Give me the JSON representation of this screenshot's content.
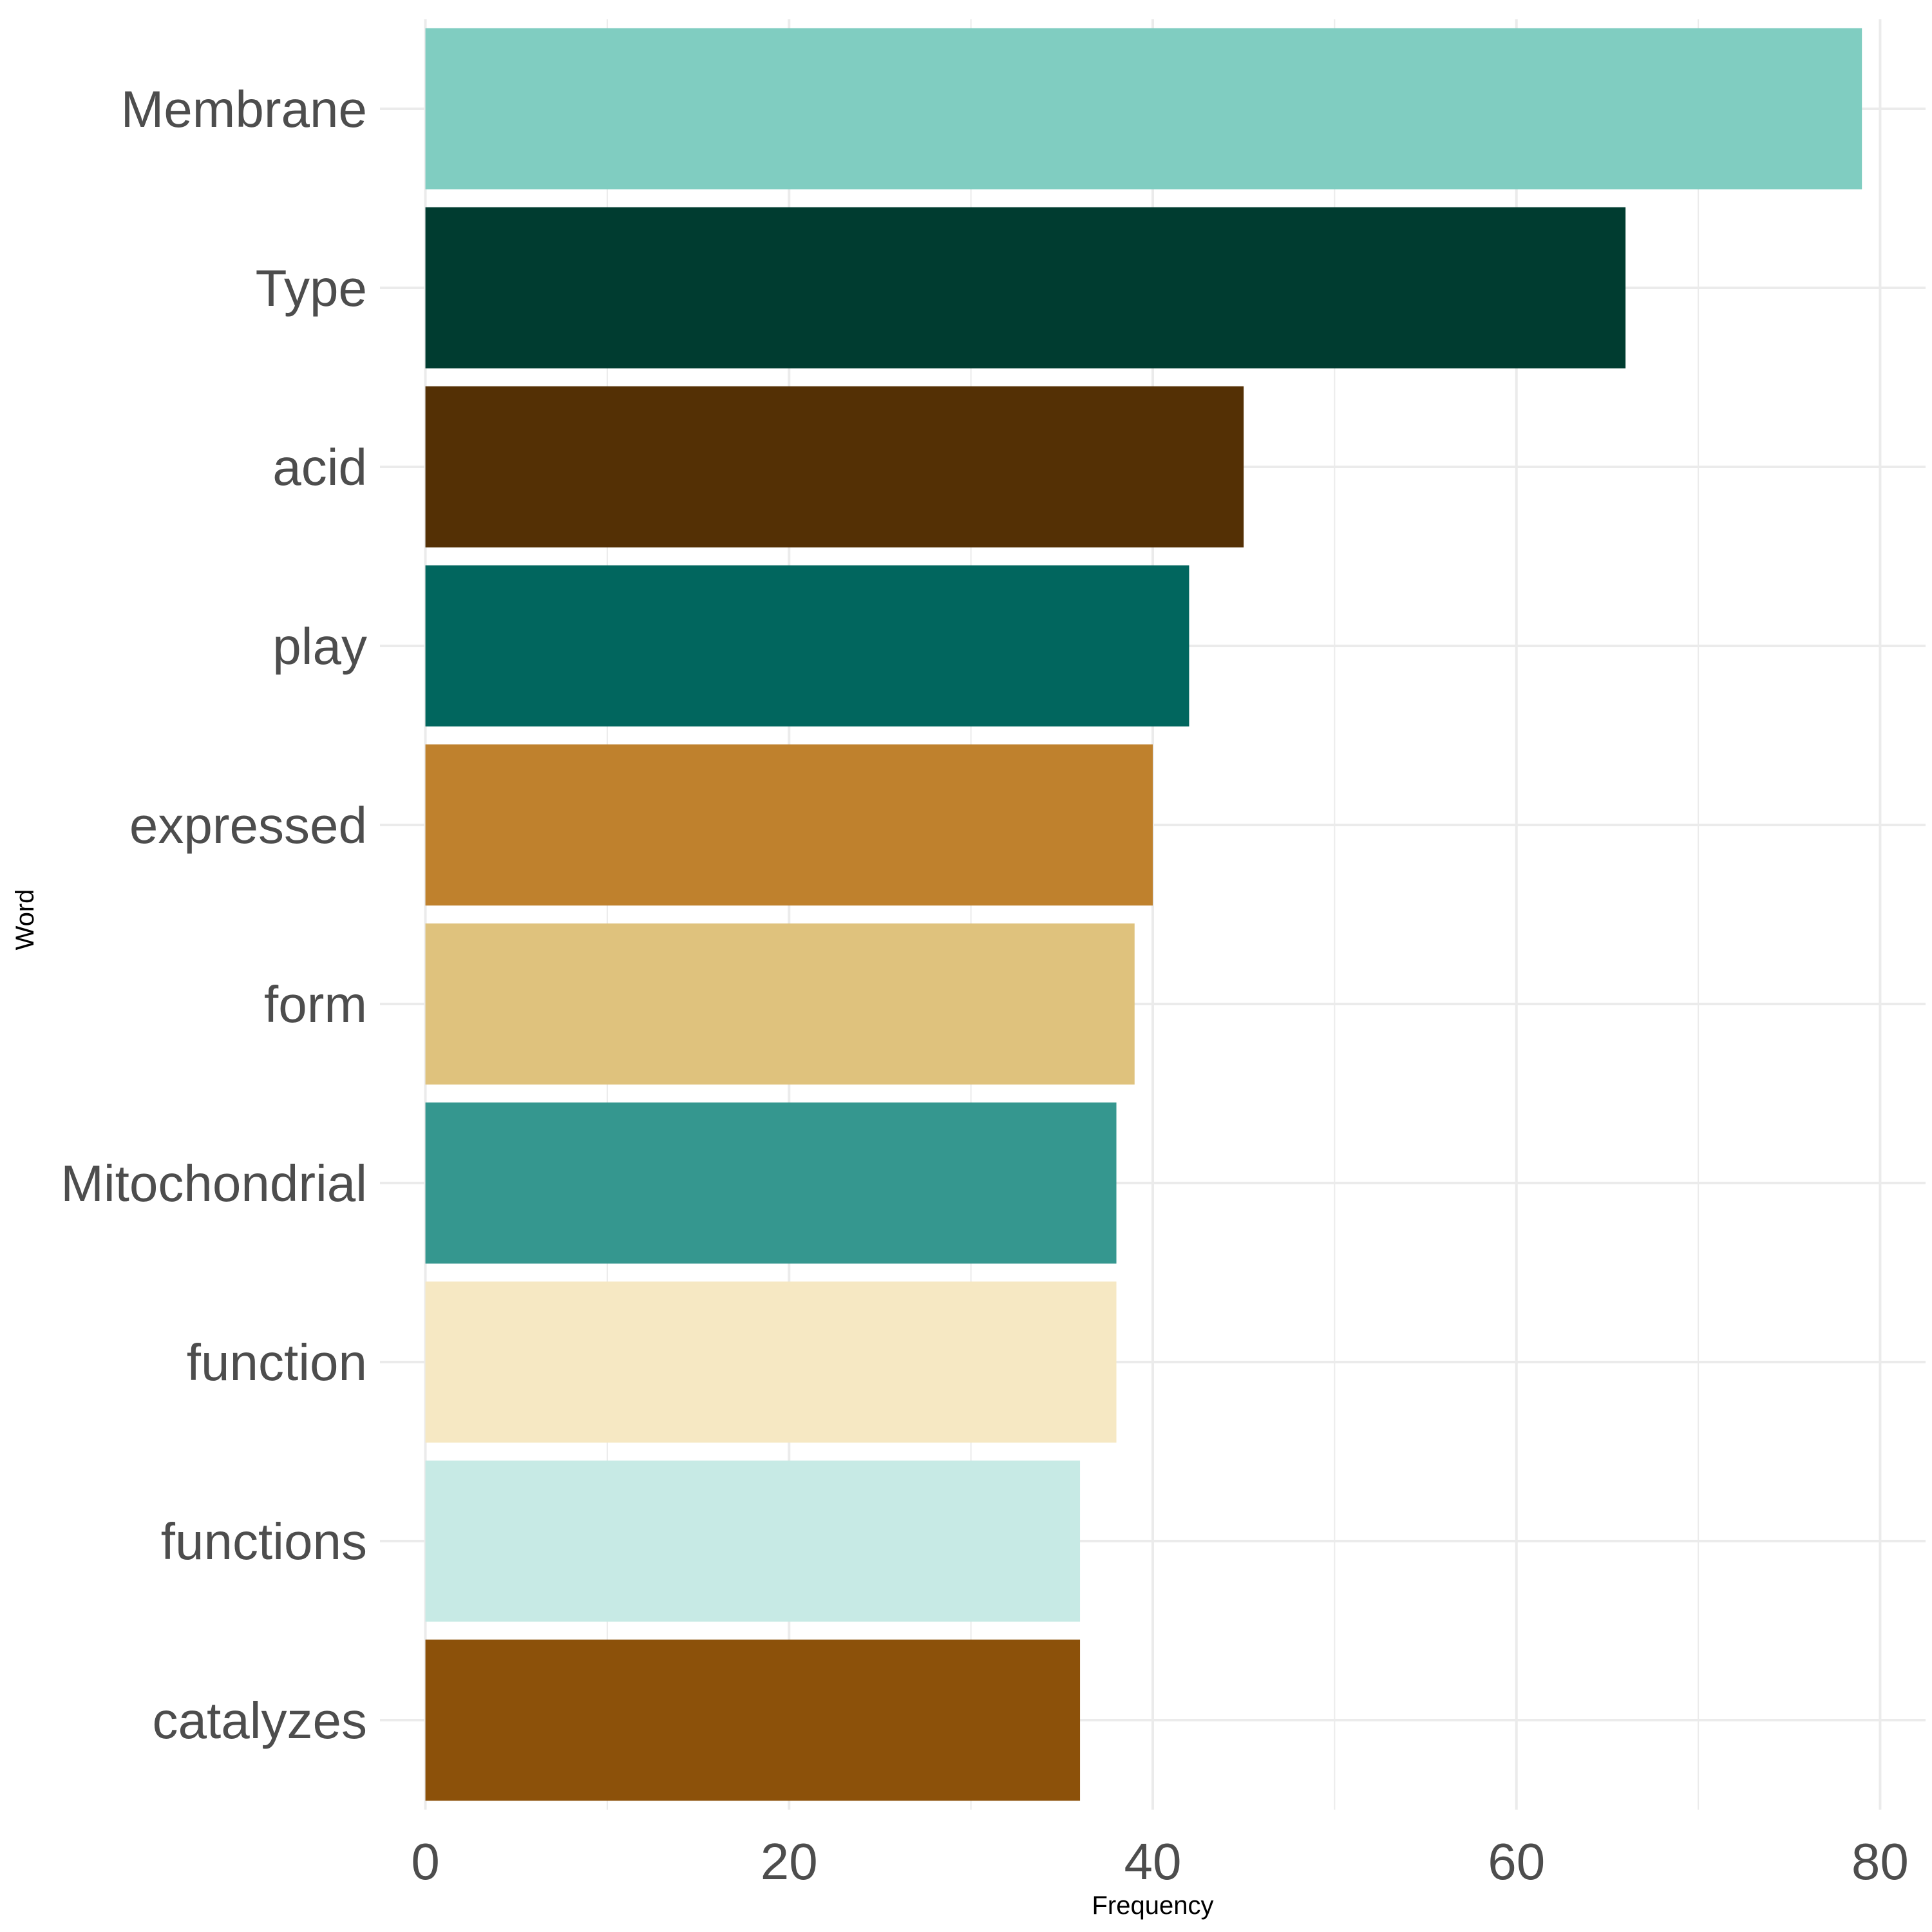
{
  "chart_data": {
    "type": "bar",
    "orientation": "horizontal",
    "xlabel": "Frequency",
    "ylabel": "Word",
    "xlim": [
      -2.5,
      82.5
    ],
    "x_ticks": [
      "0",
      "20",
      "40",
      "60",
      "80"
    ],
    "grid": true,
    "legend": "none",
    "categories": [
      "Membrane",
      "Type",
      "acid",
      "play",
      "expressed",
      "form",
      "Mitochondrial",
      "function",
      "functions",
      "catalyzes"
    ],
    "values": [
      79,
      66,
      45,
      42,
      40,
      39,
      38,
      38,
      36,
      36
    ],
    "colors": [
      "#80cdc1",
      "#003c30",
      "#543005",
      "#01665e",
      "#bf812d",
      "#dfc27d",
      "#35978f",
      "#f6e8c3",
      "#c7eae5",
      "#8c510a"
    ]
  }
}
